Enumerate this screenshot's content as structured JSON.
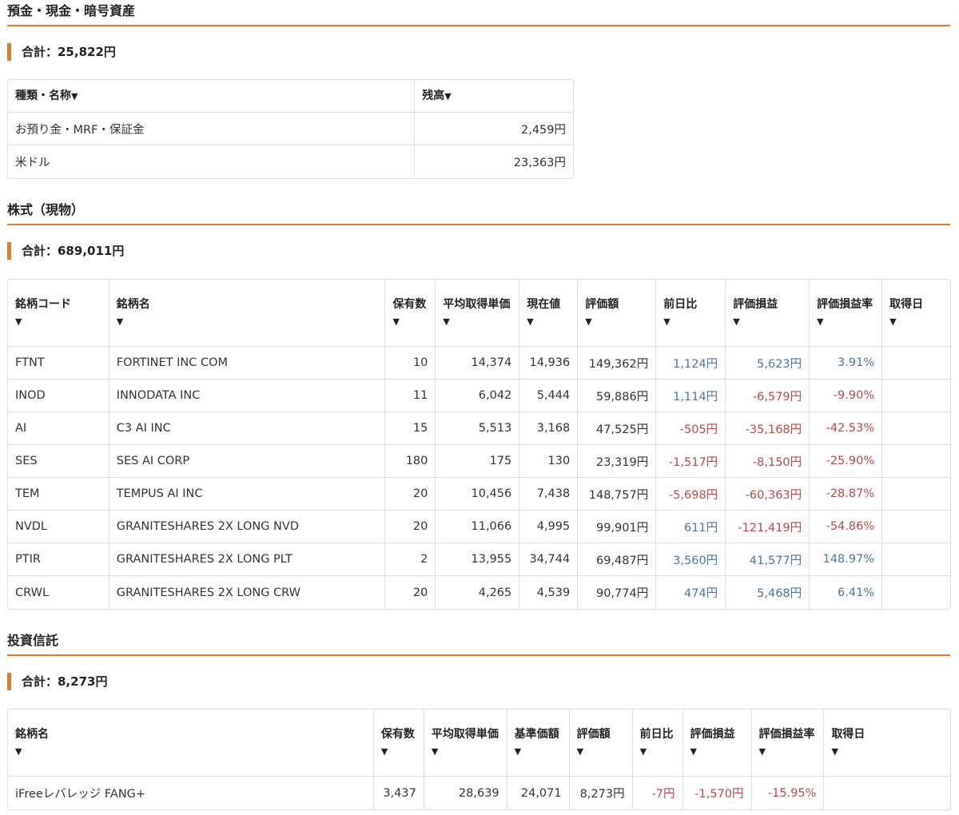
{
  "cash": {
    "title": "預金・現金・暗号資産",
    "total": "合計：25,822円",
    "headers": [
      "種類・名称",
      "残高"
    ],
    "rows": [
      {
        "name": "お預り金・MRF・保証金",
        "balance": "2,459円"
      },
      {
        "name": "米ドル",
        "balance": "23,363円"
      }
    ]
  },
  "stocks": {
    "title": "株式（現物）",
    "total": "合計：689,011円",
    "headers": [
      "銘柄コード",
      "銘柄名",
      "保有数",
      "平均取得単価",
      "現在値",
      "評価額",
      "前日比",
      "評価損益",
      "評価損益率",
      "取得日"
    ],
    "rows": [
      {
        "code": "FTNT",
        "name": "FORTINET INC COM",
        "qty": "10",
        "avg": "14,374",
        "price": "14,936",
        "value": "149,362円",
        "change": "1,124円",
        "pl": "5,623円",
        "rate": "3.91%",
        "date": ""
      },
      {
        "code": "INOD",
        "name": "INNODATA INC",
        "qty": "11",
        "avg": "6,042",
        "price": "5,444",
        "value": "59,886円",
        "change": "1,114円",
        "pl": "-6,579円",
        "rate": "-9.90%",
        "date": ""
      },
      {
        "code": "AI",
        "name": "C3 AI INC",
        "qty": "15",
        "avg": "5,513",
        "price": "3,168",
        "value": "47,525円",
        "change": "-505円",
        "pl": "-35,168円",
        "rate": "-42.53%",
        "date": ""
      },
      {
        "code": "SES",
        "name": "SES AI CORP",
        "qty": "180",
        "avg": "175",
        "price": "130",
        "value": "23,319円",
        "change": "-1,517円",
        "pl": "-8,150円",
        "rate": "-25.90%",
        "date": ""
      },
      {
        "code": "TEM",
        "name": "TEMPUS AI INC",
        "qty": "20",
        "avg": "10,456",
        "price": "7,438",
        "value": "148,757円",
        "change": "-5,698円",
        "pl": "-60,363円",
        "rate": "-28.87%",
        "date": ""
      },
      {
        "code": "NVDL",
        "name": "GRANITESHARES 2X LONG NVD",
        "qty": "20",
        "avg": "11,066",
        "price": "4,995",
        "value": "99,901円",
        "change": "611円",
        "pl": "-121,419円",
        "rate": "-54.86%",
        "date": ""
      },
      {
        "code": "PTIR",
        "name": "GRANITESHARES 2X LONG PLT",
        "qty": "2",
        "avg": "13,955",
        "price": "34,744",
        "value": "69,487円",
        "change": "3,560円",
        "pl": "41,577円",
        "rate": "148.97%",
        "date": ""
      },
      {
        "code": "CRWL",
        "name": "GRANITESHARES 2X LONG CRW",
        "qty": "20",
        "avg": "4,265",
        "price": "4,539",
        "value": "90,774円",
        "change": "474円",
        "pl": "5,468円",
        "rate": "6.41%",
        "date": ""
      }
    ]
  },
  "funds": {
    "title": "投資信託",
    "total": "合計：8,273円",
    "headers": [
      "銘柄名",
      "保有数",
      "平均取得単価",
      "基準価額",
      "評価額",
      "前日比",
      "評価損益",
      "評価損益率",
      "取得日"
    ],
    "rows": [
      {
        "name": "iFreeレバレッジ FANG+",
        "qty": "3,437",
        "avg": "28,639",
        "nav": "24,071",
        "value": "8,273円",
        "change": "-7円",
        "pl": "-1,570円",
        "rate": "-15.95%",
        "date": ""
      }
    ]
  },
  "colors": {
    "accent": "#e07a2e",
    "positive": "#4a76a8",
    "negative": "#b54a4a"
  },
  "sort_icon": "▼"
}
